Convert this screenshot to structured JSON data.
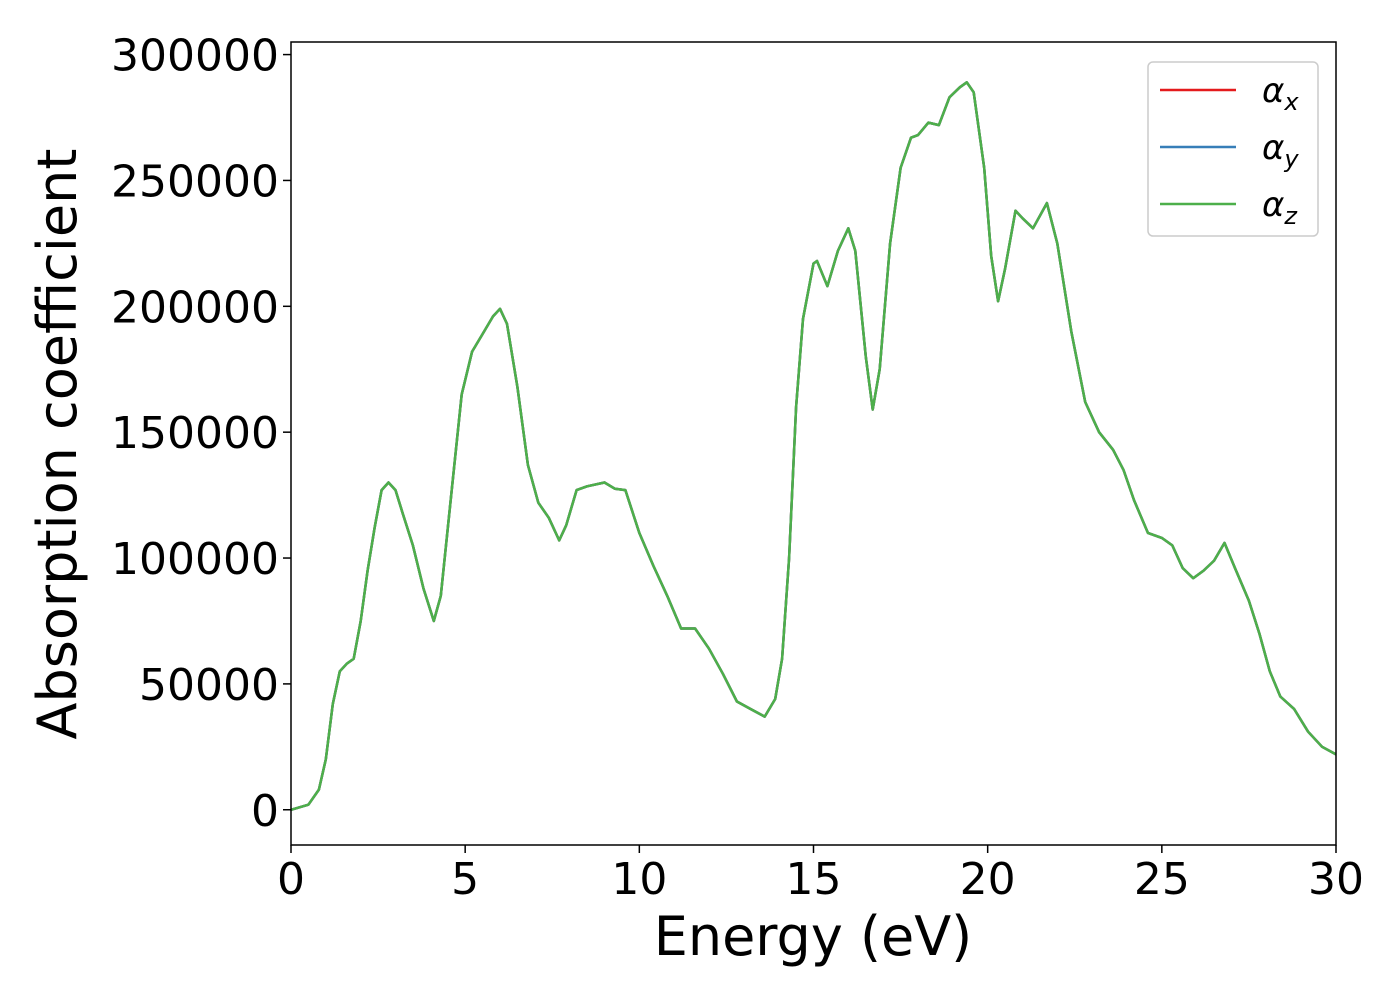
{
  "chart_data": {
    "type": "line",
    "x_label": "Energy (eV)",
    "y_label": "Absorption coefficient",
    "x": [
      0,
      0.5,
      0.8,
      1.0,
      1.2,
      1.4,
      1.6,
      1.8,
      2.0,
      2.2,
      2.4,
      2.6,
      2.8,
      3.0,
      3.2,
      3.5,
      3.8,
      4.1,
      4.3,
      4.6,
      4.9,
      5.2,
      5.5,
      5.8,
      6.0,
      6.2,
      6.5,
      6.8,
      7.1,
      7.4,
      7.7,
      7.9,
      8.2,
      8.5,
      9.0,
      9.3,
      9.6,
      10.0,
      10.4,
      10.8,
      11.2,
      11.6,
      12.0,
      12.4,
      12.8,
      13.2,
      13.6,
      13.9,
      14.1,
      14.3,
      14.5,
      14.7,
      15.0,
      15.1,
      15.4,
      15.7,
      16.0,
      16.2,
      16.5,
      16.7,
      16.9,
      17.2,
      17.5,
      17.8,
      18.0,
      18.3,
      18.6,
      18.9,
      19.2,
      19.4,
      19.6,
      19.9,
      20.1,
      20.3,
      20.5,
      20.8,
      21.0,
      21.3,
      21.7,
      22.0,
      22.4,
      22.8,
      23.2,
      23.6,
      23.9,
      24.2,
      24.6,
      25.0,
      25.3,
      25.6,
      25.9,
      26.2,
      26.5,
      26.8,
      27.1,
      27.5,
      27.8,
      28.1,
      28.4,
      28.8,
      29.2,
      29.6,
      30.0
    ],
    "series": [
      {
        "name": "αx",
        "color": "#e41a1c",
        "values": [
          0,
          2000,
          8000,
          20000,
          42000,
          55000,
          58000,
          60000,
          75000,
          95000,
          112000,
          127000,
          130000,
          127000,
          118000,
          105000,
          88000,
          75000,
          85000,
          125000,
          165000,
          182000,
          189000,
          196000,
          199000,
          193000,
          168000,
          137000,
          122000,
          116000,
          107000,
          113000,
          127000,
          128500,
          130000,
          127500,
          127000,
          110000,
          97000,
          85000,
          72000,
          72000,
          64000,
          54000,
          43000,
          40000,
          37000,
          44000,
          60000,
          100000,
          160000,
          195000,
          217000,
          218000,
          208000,
          222000,
          231000,
          222000,
          180000,
          159000,
          175000,
          225000,
          255000,
          267000,
          268000,
          273000,
          272000,
          283000,
          287000,
          289000,
          285000,
          255000,
          220000,
          202000,
          215000,
          238000,
          235000,
          231000,
          241000,
          225000,
          190000,
          162000,
          150000,
          143000,
          135000,
          123000,
          110000,
          108000,
          105000,
          96000,
          92000,
          95000,
          99000,
          106000,
          96000,
          83000,
          70000,
          55000,
          45000,
          40000,
          31000,
          25000,
          22000
        ]
      },
      {
        "name": "αy",
        "color": "#377eb8",
        "values": [
          0,
          2000,
          8000,
          20000,
          42000,
          55000,
          58000,
          60000,
          75000,
          95000,
          112000,
          127000,
          130000,
          127000,
          118000,
          105000,
          88000,
          75000,
          85000,
          125000,
          165000,
          182000,
          189000,
          196000,
          199000,
          193000,
          168000,
          137000,
          122000,
          116000,
          107000,
          113000,
          127000,
          128500,
          130000,
          127500,
          127000,
          110000,
          97000,
          85000,
          72000,
          72000,
          64000,
          54000,
          43000,
          40000,
          37000,
          44000,
          60000,
          100000,
          160000,
          195000,
          217000,
          218000,
          208000,
          222000,
          231000,
          222000,
          180000,
          159000,
          175000,
          225000,
          255000,
          267000,
          268000,
          273000,
          272000,
          283000,
          287000,
          289000,
          285000,
          255000,
          220000,
          202000,
          215000,
          238000,
          235000,
          231000,
          241000,
          225000,
          190000,
          162000,
          150000,
          143000,
          135000,
          123000,
          110000,
          108000,
          105000,
          96000,
          92000,
          95000,
          99000,
          106000,
          96000,
          83000,
          70000,
          55000,
          45000,
          40000,
          31000,
          25000,
          22000
        ]
      },
      {
        "name": "αz",
        "color": "#4daf4a",
        "values": [
          0,
          2000,
          8000,
          20000,
          42000,
          55000,
          58000,
          60000,
          75000,
          95000,
          112000,
          127000,
          130000,
          127000,
          118000,
          105000,
          88000,
          75000,
          85000,
          125000,
          165000,
          182000,
          189000,
          196000,
          199000,
          193000,
          168000,
          137000,
          122000,
          116000,
          107000,
          113000,
          127000,
          128500,
          130000,
          127500,
          127000,
          110000,
          97000,
          85000,
          72000,
          72000,
          64000,
          54000,
          43000,
          40000,
          37000,
          44000,
          60000,
          100000,
          160000,
          195000,
          217000,
          218000,
          208000,
          222000,
          231000,
          222000,
          180000,
          159000,
          175000,
          225000,
          255000,
          267000,
          268000,
          273000,
          272000,
          283000,
          287000,
          289000,
          285000,
          255000,
          220000,
          202000,
          215000,
          238000,
          235000,
          231000,
          241000,
          225000,
          190000,
          162000,
          150000,
          143000,
          135000,
          123000,
          110000,
          108000,
          105000,
          96000,
          92000,
          95000,
          99000,
          106000,
          96000,
          83000,
          70000,
          55000,
          45000,
          40000,
          31000,
          25000,
          22000
        ]
      }
    ],
    "xlim": [
      0,
      30
    ],
    "xticks": [
      0,
      5,
      10,
      15,
      20,
      25,
      30
    ],
    "ylim": [
      -14000,
      305000
    ],
    "yticks": [
      0,
      50000,
      100000,
      150000,
      200000,
      250000,
      300000
    ],
    "grid": false,
    "legend": "upper right"
  }
}
